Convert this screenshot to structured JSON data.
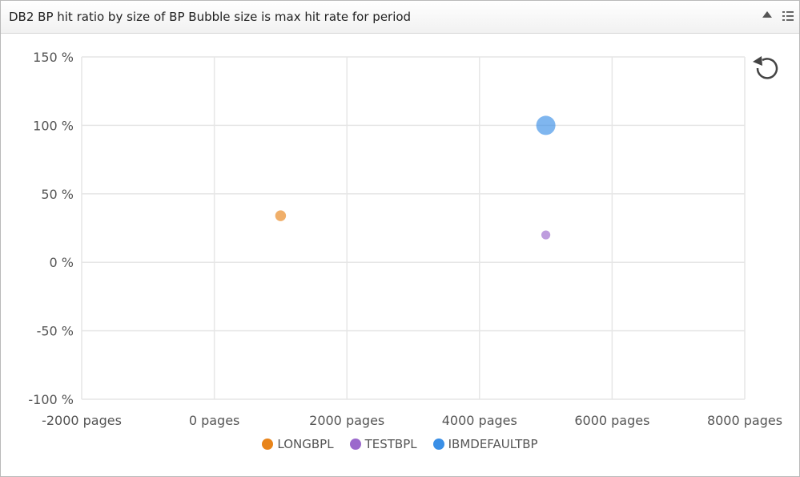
{
  "panel": {
    "title": "DB2 BP hit ratio by size of BP Bubble size is max hit rate for period",
    "collapse_icon": "triangle-up-icon",
    "menu_icon": "list-menu-icon",
    "refresh_icon": "refresh-icon"
  },
  "chart_data": {
    "type": "scatter",
    "title": "",
    "xlabel": "",
    "ylabel": "",
    "xlim": [
      -2000,
      8000
    ],
    "ylim": [
      -100,
      150
    ],
    "x_ticks": [
      {
        "value": -2000,
        "label": "-2000 pages"
      },
      {
        "value": 0,
        "label": "0 pages"
      },
      {
        "value": 2000,
        "label": "2000 pages"
      },
      {
        "value": 4000,
        "label": "4000 pages"
      },
      {
        "value": 6000,
        "label": "6000 pages"
      },
      {
        "value": 8000,
        "label": "8000 pages"
      }
    ],
    "y_ticks": [
      {
        "value": 150,
        "label": "150 %"
      },
      {
        "value": 100,
        "label": "100 %"
      },
      {
        "value": 50,
        "label": "50 %"
      },
      {
        "value": 0,
        "label": "0 %"
      },
      {
        "value": -50,
        "label": "-50 %"
      },
      {
        "value": -100,
        "label": "-100 %"
      }
    ],
    "grid": true,
    "legend_position": "bottom",
    "series": [
      {
        "name": "LONGBPL",
        "color": "#e8841a",
        "points": [
          {
            "x": 1000,
            "y": 34,
            "size": 34
          }
        ]
      },
      {
        "name": "TESTBPL",
        "color": "#9b69cc",
        "points": [
          {
            "x": 5000,
            "y": 20,
            "size": 20
          }
        ]
      },
      {
        "name": "IBMDEFAULTBP",
        "color": "#3a8fe6",
        "points": [
          {
            "x": 5000,
            "y": 100,
            "size": 100
          }
        ]
      }
    ]
  }
}
